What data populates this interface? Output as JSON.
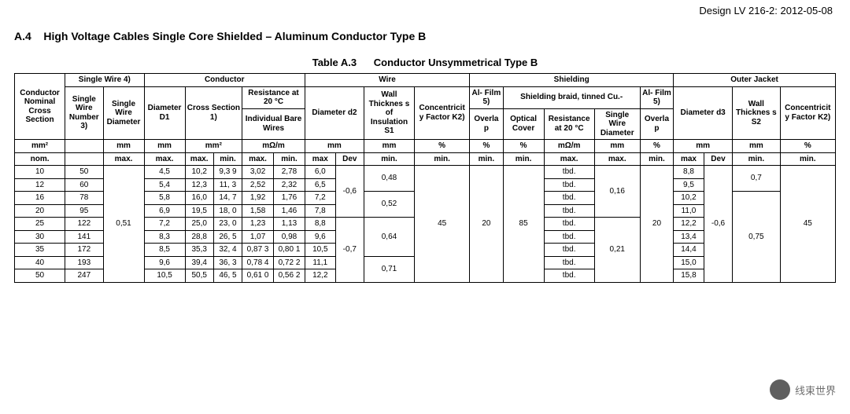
{
  "font_family": "Arial",
  "colors": {
    "text": "#000000",
    "border": "#000000",
    "background": "#ffffff",
    "watermark_text": "#555555"
  },
  "header": {
    "doc_id": "Design LV 216-2: 2012-05-08",
    "section_no": "A.4",
    "section_title": "High Voltage Cables Single Core Shielded – Aluminum Conductor Type B"
  },
  "table": {
    "caption_no": "Table A.3",
    "caption_title": "Conductor Unsymmetrical Type B",
    "top_groups": {
      "g_conductor_cs": {
        "label": "Conductor Nominal Cross Section",
        "rowspan": 3,
        "colspan": 1
      },
      "g_single_wire": {
        "label": "Single Wire 4)",
        "colspan": 2
      },
      "g_conductor": {
        "label": "Conductor",
        "colspan": 5
      },
      "g_wire": {
        "label": "Wire",
        "colspan": 4
      },
      "g_shielding": {
        "label": "Shielding",
        "colspan": 6
      },
      "g_outer_jacket": {
        "label": "Outer Jacket",
        "colspan": 5
      }
    },
    "mid_groups": {
      "single_wire_number": "Single Wire Number 3)",
      "single_wire_diameter": "Single Wire Diameter",
      "diameter_d1": "Diameter D1",
      "cross_section": "Cross Section 1)",
      "resistance20": "Resistance at 20 °C",
      "individual_bare_wires": "Individual Bare Wires",
      "diameter_d2": "Diameter d2",
      "wall_thickness_s1": "Wall Thicknes s of Insulation S1",
      "concentricity_k2_wire": "Concentricit y Factor K2)",
      "al_film_l": "Al- Film 5)",
      "shielding_braid": "Shielding braid, tinned Cu.-",
      "al_film_r": "Al- Film 5)",
      "overlap_l": "Overla p",
      "optical_cover": "Optical Cover",
      "braid_resistance": "Resistance at 20 °C",
      "braid_single_wire_dia": "Single Wire Diameter",
      "overlap_r": "Overla p",
      "diameter_d3": "Diameter d3",
      "wall_thickness_s2": "Wall Thicknes s S2",
      "concentricity_k2_outer": "Concentricit y Factor K2)"
    },
    "unit_row": {
      "u1": "mm²",
      "u2": "",
      "u3": "mm",
      "u4": "mm",
      "u5": "mm²",
      "u5b": "",
      "u6": "mΩ/m",
      "u6b": "",
      "u7": "mm",
      "u7b": "",
      "u8": "mm",
      "u9": "%",
      "u10": "%",
      "u11": "%",
      "u12": "mΩ/m",
      "u13": "mm",
      "u14": "%",
      "u15": "mm",
      "u15b": "",
      "u16": "mm",
      "u17": "%"
    },
    "qual_row": {
      "q1": "nom.",
      "q2": "",
      "q3": "max.",
      "q4": "max.",
      "q5": "max.",
      "q5b": "min.",
      "q6": "max.",
      "q6b": "min.",
      "q7": "max",
      "q7b": "Dev",
      "q8": "min.",
      "q9": "min.",
      "q10": "min.",
      "q11": "min.",
      "q12": "max.",
      "q13": "max.",
      "q14": "min.",
      "q15": "max",
      "q15b": "Dev",
      "q16": "min.",
      "q17": "min."
    },
    "shared": {
      "single_wire_dia_max": "0,51",
      "d2_dev_a": "-0,6",
      "d2_dev_b": "-0,7",
      "wall_s1_a": "0,48",
      "wall_s1_b": "0,52",
      "wall_s1_c": "0,64",
      "wall_s1_d": "0,71",
      "conc_k2_wire": "45",
      "overlap_l": "20",
      "optical_cover": "85",
      "braid_sw_dia_a": "0,16",
      "braid_sw_dia_b": "0,21",
      "overlap_r": "20",
      "d3_dev": "-0,6",
      "wall_s2_a": "0,7",
      "wall_s2_b": "0,75",
      "conc_k2_outer": "45"
    },
    "rows": [
      {
        "cs": "10",
        "swn": "50",
        "d1": "4,5",
        "xmax": "10,2",
        "xmin": "9,3 9",
        "rmax": "3,02",
        "rmin": "2,78",
        "d2": "6,0",
        "braid_r": "tbd.",
        "d3": "8,8"
      },
      {
        "cs": "12",
        "swn": "60",
        "d1": "5,4",
        "xmax": "12,3",
        "xmin": "11, 3",
        "rmax": "2,52",
        "rmin": "2,32",
        "d2": "6,5",
        "braid_r": "tbd.",
        "d3": "9,5"
      },
      {
        "cs": "16",
        "swn": "78",
        "d1": "5,8",
        "xmax": "16,0",
        "xmin": "14, 7",
        "rmax": "1,92",
        "rmin": "1,76",
        "d2": "7,2",
        "braid_r": "tbd.",
        "d3": "10,2"
      },
      {
        "cs": "20",
        "swn": "95",
        "d1": "6,9",
        "xmax": "19,5",
        "xmin": "18, 0",
        "rmax": "1,58",
        "rmin": "1,46",
        "d2": "7,8",
        "braid_r": "tbd.",
        "d3": "11,0"
      },
      {
        "cs": "25",
        "swn": "122",
        "d1": "7,2",
        "xmax": "25,0",
        "xmin": "23, 0",
        "rmax": "1,23",
        "rmin": "1,13",
        "d2": "8,8",
        "braid_r": "tbd.",
        "d3": "12,2"
      },
      {
        "cs": "30",
        "swn": "141",
        "d1": "8,3",
        "xmax": "28,8",
        "xmin": "26, 5",
        "rmax": "1,07",
        "rmin": "0,98",
        "d2": "9,6",
        "braid_r": "tbd.",
        "d3": "13,4"
      },
      {
        "cs": "35",
        "swn": "172",
        "d1": "8,5",
        "xmax": "35,3",
        "xmin": "32, 4",
        "rmax": "0,87 3",
        "rmin": "0,80 1",
        "d2": "10,5",
        "braid_r": "tbd.",
        "d3": "14,4"
      },
      {
        "cs": "40",
        "swn": "193",
        "d1": "9,6",
        "xmax": "39,4",
        "xmin": "36, 3",
        "rmax": "0,78 4",
        "rmin": "0,72 2",
        "d2": "11,1",
        "braid_r": "tbd.",
        "d3": "15,0"
      },
      {
        "cs": "50",
        "swn": "247",
        "d1": "10,5",
        "xmax": "50,5",
        "xmin": "46, 5",
        "rmax": "0,61 0",
        "rmin": "0,56 2",
        "d2": "12,2",
        "braid_r": "tbd.",
        "d3": "15,8"
      }
    ]
  },
  "watermark": {
    "text": "线束世界"
  }
}
